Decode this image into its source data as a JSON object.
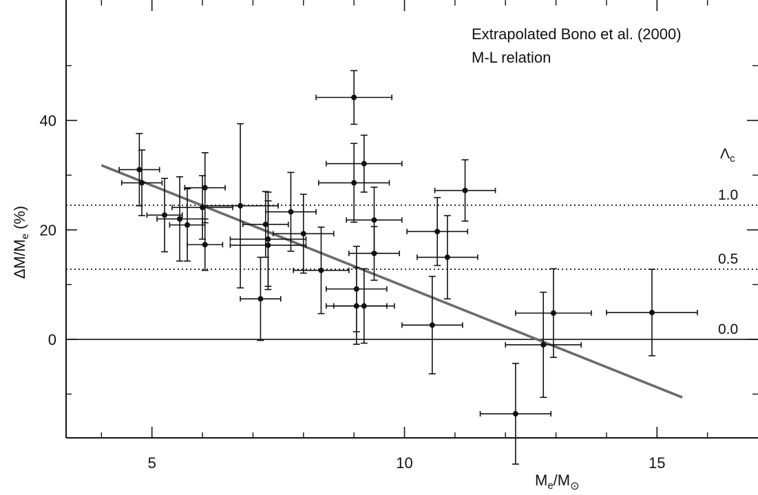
{
  "chart_data": {
    "type": "scatter",
    "title": "",
    "xlabel": {
      "main": "M",
      "sub": "e",
      "sep": "/M",
      "sub2": "⊙"
    },
    "ylabel": {
      "main": "ΔM/M",
      "sub": "e",
      "rest": " (%)"
    },
    "xlim": [
      3.3,
      17.0
    ],
    "ylim": [
      -18.0,
      62.0
    ],
    "x_ticks_major": [
      5,
      10,
      15
    ],
    "x_ticks_minor": [
      4,
      6,
      7,
      8,
      9,
      11,
      12,
      13,
      14,
      16
    ],
    "y_ticks_major": [
      0,
      20,
      40
    ],
    "y_ticks_minor": [
      -10,
      10,
      30,
      50
    ],
    "annotation_lines": [
      "Extrapolated Bono et al. (2000)",
      "M-L relation"
    ],
    "lambda_label": {
      "main": "Λ",
      "sub": "c"
    },
    "reference_lines": [
      {
        "y": 24.5,
        "label": "1.0",
        "style": "dotted"
      },
      {
        "y": 12.8,
        "label": "0.5",
        "style": "dotted"
      },
      {
        "y": 0.0,
        "label": "0.0",
        "style": "solid"
      }
    ],
    "fit_line": {
      "x": [
        4.0,
        15.5
      ],
      "y": [
        31.8,
        -10.6
      ],
      "color": "#6b6b6b"
    },
    "points": [
      {
        "x": 4.75,
        "y": 31.0,
        "xerr": 0.4,
        "yerr": 6.6
      },
      {
        "x": 4.8,
        "y": 28.6,
        "xerr": 0.4,
        "yerr": 6.0
      },
      {
        "x": 5.25,
        "y": 22.7,
        "xerr": 0.35,
        "yerr": 6.7
      },
      {
        "x": 5.55,
        "y": 22.0,
        "xerr": 0.45,
        "yerr": 7.7
      },
      {
        "x": 5.7,
        "y": 20.9,
        "xerr": 0.35,
        "yerr": 6.6
      },
      {
        "x": 6.0,
        "y": 24.1,
        "xerr": 0.6,
        "yerr": 5.8
      },
      {
        "x": 6.05,
        "y": 27.7,
        "xerr": 0.4,
        "yerr": 6.4
      },
      {
        "x": 6.05,
        "y": 17.3,
        "xerr": 0.35,
        "yerr": 4.7
      },
      {
        "x": 6.75,
        "y": 24.4,
        "xerr": 0.75,
        "yerr": 15.0
      },
      {
        "x": 7.15,
        "y": 7.4,
        "xerr": 0.4,
        "yerr": 7.6
      },
      {
        "x": 7.25,
        "y": 21.0,
        "xerr": 0.45,
        "yerr": 6.0
      },
      {
        "x": 7.3,
        "y": 18.3,
        "xerr": 0.75,
        "yerr": 8.6
      },
      {
        "x": 7.3,
        "y": 17.2,
        "xerr": 0.75,
        "yerr": 8.1
      },
      {
        "x": 7.75,
        "y": 23.3,
        "xerr": 0.5,
        "yerr": 7.2
      },
      {
        "x": 8.0,
        "y": 19.3,
        "xerr": 0.6,
        "yerr": 7.2
      },
      {
        "x": 8.35,
        "y": 12.6,
        "xerr": 0.55,
        "yerr": 7.9
      },
      {
        "x": 9.0,
        "y": 44.2,
        "xerr": 0.75,
        "yerr": 4.9
      },
      {
        "x": 9.0,
        "y": 28.6,
        "xerr": 0.7,
        "yerr": 7.2
      },
      {
        "x": 9.05,
        "y": 9.2,
        "xerr": 0.6,
        "yerr": 7.8
      },
      {
        "x": 9.05,
        "y": 6.1,
        "xerr": 0.6,
        "yerr": 7.0
      },
      {
        "x": 9.2,
        "y": 32.1,
        "xerr": 0.75,
        "yerr": 5.2
      },
      {
        "x": 9.2,
        "y": 6.1,
        "xerr": 0.6,
        "yerr": 6.8
      },
      {
        "x": 9.4,
        "y": 15.7,
        "xerr": 0.5,
        "yerr": 4.9
      },
      {
        "x": 9.4,
        "y": 21.8,
        "xerr": 0.55,
        "yerr": 6.0
      },
      {
        "x": 10.55,
        "y": 2.6,
        "xerr": 0.6,
        "yerr": 8.9
      },
      {
        "x": 10.65,
        "y": 19.7,
        "xerr": 0.6,
        "yerr": 6.2
      },
      {
        "x": 10.85,
        "y": 15.0,
        "xerr": 0.6,
        "yerr": 7.6
      },
      {
        "x": 11.2,
        "y": 27.2,
        "xerr": 0.6,
        "yerr": 5.6
      },
      {
        "x": 12.2,
        "y": -13.6,
        "xerr": 0.7,
        "yerr": 9.2
      },
      {
        "x": 12.75,
        "y": -1.0,
        "xerr": 0.75,
        "yerr": 9.6
      },
      {
        "x": 12.95,
        "y": 4.8,
        "xerr": 0.75,
        "yerr": 8.1
      },
      {
        "x": 14.9,
        "y": 4.9,
        "xerr": 0.9,
        "yerr": 7.9
      }
    ]
  }
}
